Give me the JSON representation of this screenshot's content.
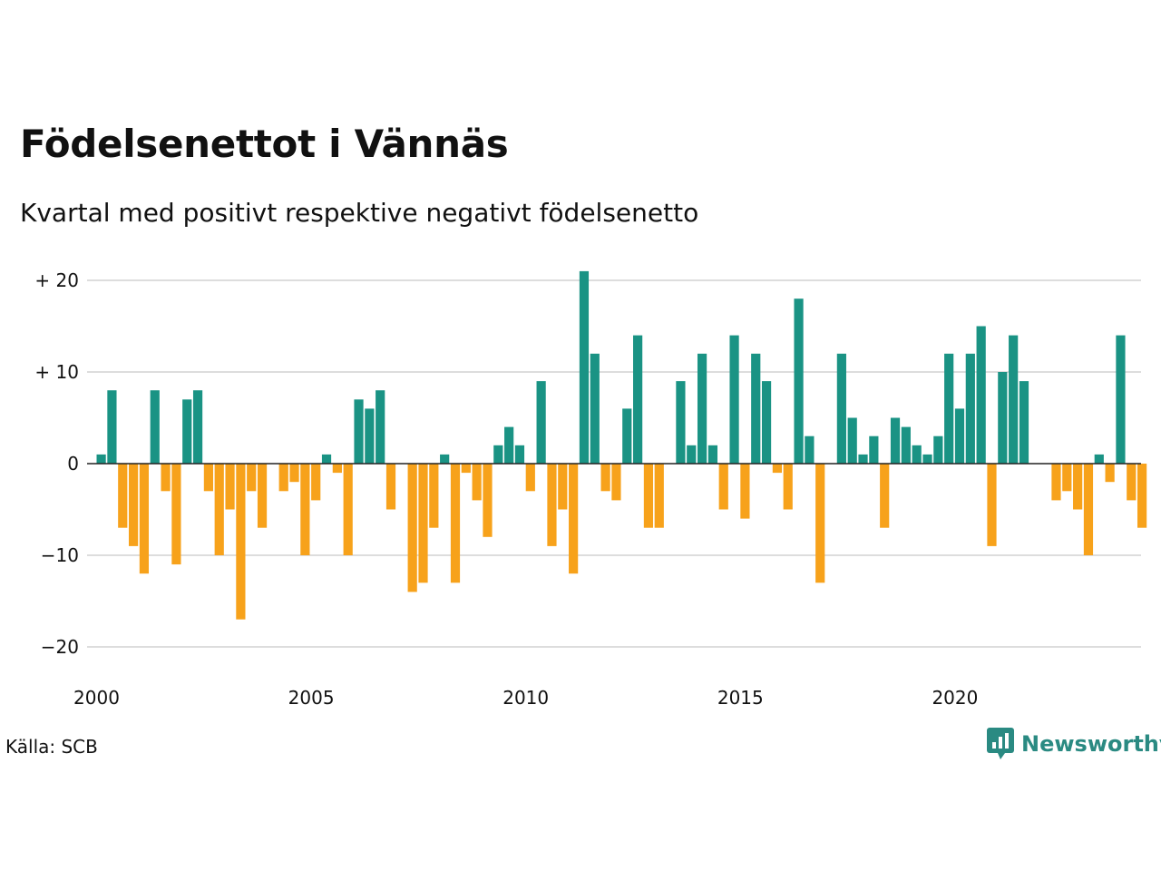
{
  "header": {
    "title": "Födelsenettot i Vännäs",
    "subtitle": "Kvartal med positivt respektive negativt födelsenetto"
  },
  "footer": {
    "source": "Källa: SCB",
    "brand": "Newsworthy",
    "brand_icon": "newsworthy-chart-bubble-icon"
  },
  "colors": {
    "positive": "#1a9384",
    "negative": "#f7a21b",
    "grid": "#dddddd",
    "zero_line": "#222222",
    "brand": "#2a8a82"
  },
  "chart_data": {
    "type": "bar",
    "title": "Födelsenettot i Vännäs",
    "subtitle": "Kvartal med positivt respektive negativt födelsenetto",
    "x_start": "2000-Q1",
    "values": [
      1,
      8,
      -7,
      -9,
      -12,
      8,
      -3,
      -11,
      7,
      8,
      -3,
      -10,
      -5,
      -17,
      -3,
      -7,
      0,
      -3,
      -2,
      -10,
      -4,
      1,
      -1,
      -10,
      7,
      6,
      8,
      -5,
      0,
      -14,
      -13,
      -7,
      1,
      -13,
      -1,
      -4,
      -8,
      2,
      4,
      2,
      -3,
      9,
      -9,
      -5,
      -12,
      21,
      12,
      -3,
      -4,
      6,
      14,
      -7,
      -7,
      0,
      9,
      2,
      12,
      2,
      -5,
      14,
      -6,
      12,
      9,
      -1,
      -5,
      18,
      3,
      -13,
      0,
      12,
      5,
      1,
      3,
      -7,
      5,
      4,
      2,
      1,
      3,
      12,
      6,
      12,
      15,
      -9,
      10,
      14,
      9,
      0,
      0,
      -4,
      -3,
      -5,
      -10,
      1,
      -2,
      14,
      -4,
      -7
    ],
    "ylim": [
      -20,
      21
    ],
    "y_ticks": [
      {
        "value": 20,
        "label": "+ 20"
      },
      {
        "value": 10,
        "label": "+ 10"
      },
      {
        "value": 0,
        "label": "0"
      },
      {
        "value": -10,
        "label": "−10"
      },
      {
        "value": -20,
        "label": "−20"
      }
    ],
    "x_ticks": [
      {
        "year": 2000,
        "label": "2000"
      },
      {
        "year": 2005,
        "label": "2005"
      },
      {
        "year": 2010,
        "label": "2010"
      },
      {
        "year": 2015,
        "label": "2015"
      },
      {
        "year": 2020,
        "label": "2020"
      }
    ],
    "xlabel": "",
    "ylabel": "",
    "grid": true,
    "legend": "none"
  }
}
